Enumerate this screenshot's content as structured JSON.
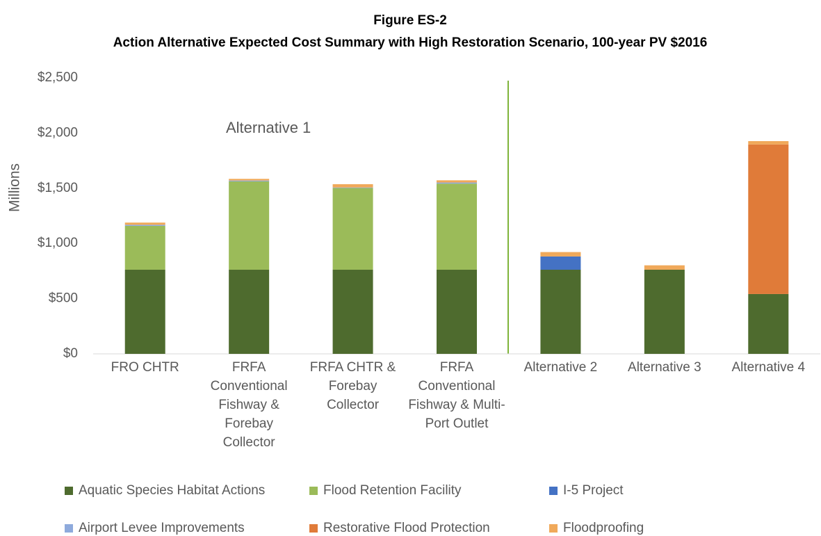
{
  "chart_data": {
    "type": "stacked_bar",
    "title": "Figure ES-2",
    "subtitle": "Action Alternative Expected Cost Summary with High Restoration Scenario, 100-year PV $2016",
    "y_label": "Millions",
    "annotation": "Alternative 1",
    "categories": [
      "FRO CHTR",
      "FRFA Conventional Fishway & Forebay Collector",
      "FRFA CHTR & Forebay Collector",
      "FRFA Conventional Fishway & Multi-Port Outlet",
      "Alternative 2",
      "Alternative 3",
      "Alternative 4"
    ],
    "series": [
      {
        "name": "Aquatic Species Habitat Actions",
        "color": "#4e6b2e",
        "values": [
          762,
          762,
          762,
          762,
          762,
          762,
          542
        ]
      },
      {
        "name": "Flood Retention Facility",
        "color": "#9bbb59",
        "values": [
          397,
          800,
          740,
          780,
          0,
          0,
          0
        ]
      },
      {
        "name": "I-5 Project",
        "color": "#4472c4",
        "values": [
          0,
          0,
          0,
          0,
          120,
          0,
          0
        ]
      },
      {
        "name": "Airport Levee Improvements",
        "color": "#8eaadc",
        "values": [
          10,
          8,
          5,
          10,
          0,
          0,
          0
        ]
      },
      {
        "name": "Restorative Flood Protection",
        "color": "#e07b39",
        "values": [
          0,
          0,
          0,
          0,
          0,
          0,
          1355
        ]
      },
      {
        "name": "Floodproofing",
        "color": "#f0a95a",
        "values": [
          20,
          15,
          30,
          20,
          40,
          40,
          30
        ]
      }
    ],
    "ylim": [
      0,
      2500
    ],
    "yticks": [
      {
        "value": 0,
        "label": "$0"
      },
      {
        "value": 500,
        "label": "$500"
      },
      {
        "value": 1000,
        "label": "$1,000"
      },
      {
        "value": 1500,
        "label": "$1,500"
      },
      {
        "value": 2000,
        "label": "$2,000"
      },
      {
        "value": 2500,
        "label": "$2,500"
      }
    ],
    "grid": false,
    "legend": "bottom"
  }
}
